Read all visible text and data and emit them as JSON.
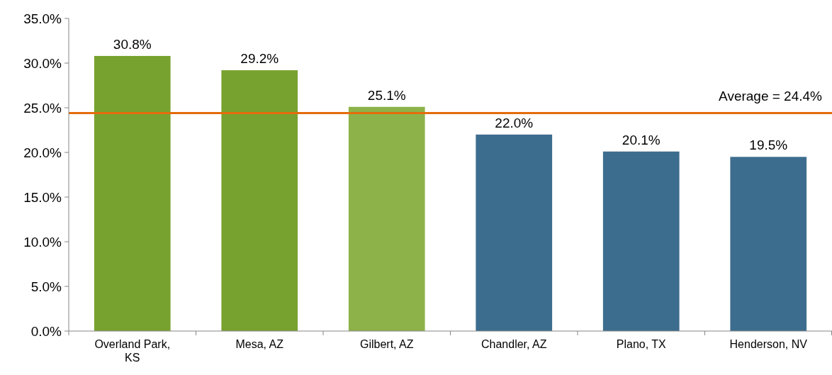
{
  "chart_data": {
    "type": "bar",
    "categories": [
      "Overland Park, KS",
      "Mesa, AZ",
      "Gilbert, AZ",
      "Chandler, AZ",
      "Plano, TX",
      "Henderson, NV"
    ],
    "values": [
      30.8,
      29.2,
      25.1,
      22.0,
      20.1,
      19.5
    ],
    "colors": [
      "#78a22f",
      "#78a22f",
      "#8db24a",
      "#3d6d8e",
      "#3d6d8e",
      "#3d6d8e"
    ],
    "value_labels": [
      "30.8%",
      "29.2%",
      "25.1%",
      "22.0%",
      "20.1%",
      "19.5%"
    ],
    "ylim": [
      0,
      35
    ],
    "yticks": [
      {
        "value": 0,
        "label": "0.0%"
      },
      {
        "value": 5,
        "label": "5.0%"
      },
      {
        "value": 10,
        "label": "10.0%"
      },
      {
        "value": 15,
        "label": "15.0%"
      },
      {
        "value": 20,
        "label": "20.0%"
      },
      {
        "value": 25,
        "label": "25.0%"
      },
      {
        "value": 30,
        "label": "30.0%"
      },
      {
        "value": 35,
        "label": "35.0%"
      }
    ],
    "ref_lines": [
      {
        "axis": "y",
        "value": 24.4,
        "label": "Average = 24.4%",
        "color": "#e46c0a"
      }
    ],
    "grid": false
  }
}
